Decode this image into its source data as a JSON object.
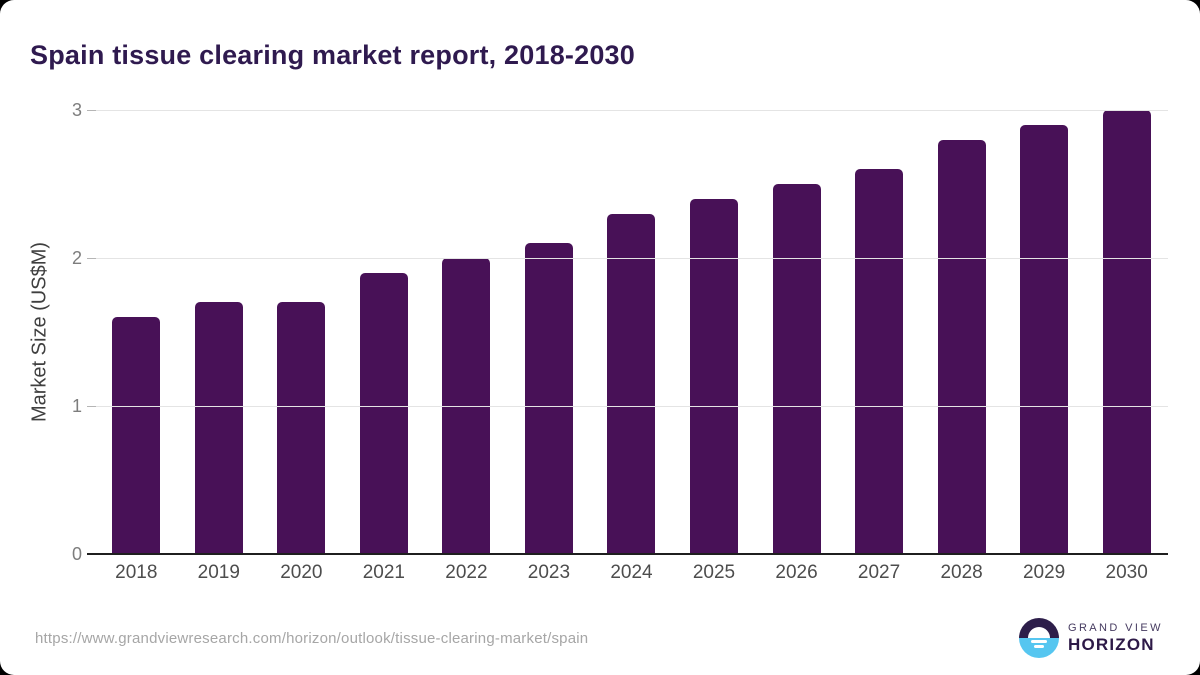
{
  "title": "Spain tissue clearing market report, 2018-2030",
  "chart_data": {
    "type": "bar",
    "title": "Spain tissue clearing market report, 2018-2030",
    "categories": [
      "2018",
      "2019",
      "2020",
      "2021",
      "2022",
      "2023",
      "2024",
      "2025",
      "2026",
      "2027",
      "2028",
      "2029",
      "2030"
    ],
    "values": [
      1.6,
      1.7,
      1.7,
      1.9,
      2.0,
      2.1,
      2.3,
      2.4,
      2.5,
      2.6,
      2.8,
      2.9,
      3.0
    ],
    "xlabel": "",
    "ylabel": "Market Size (US$M)",
    "ylim": [
      0,
      3
    ],
    "yticks": [
      0,
      1,
      2,
      3
    ],
    "grid": "horizontal",
    "legend": "none",
    "bar_color": "#481157"
  },
  "footer": {
    "source_url": "https://www.grandviewresearch.com/horizon/outlook/tissue-clearing-market/spain",
    "logo": {
      "top_line": "GRAND VIEW",
      "bottom_line": "HORIZON"
    }
  },
  "colors": {
    "bar": "#481157",
    "title_text": "#2f1a4f",
    "axis_line": "#1f1f1f",
    "gridline": "#e4e4e4",
    "y_tick_label": "#7d7d7d",
    "x_category_label": "#4d4d4d",
    "url_text": "#a6a6a6",
    "logo_purple": "#2d1e4a",
    "logo_blue": "#56c6f0"
  }
}
